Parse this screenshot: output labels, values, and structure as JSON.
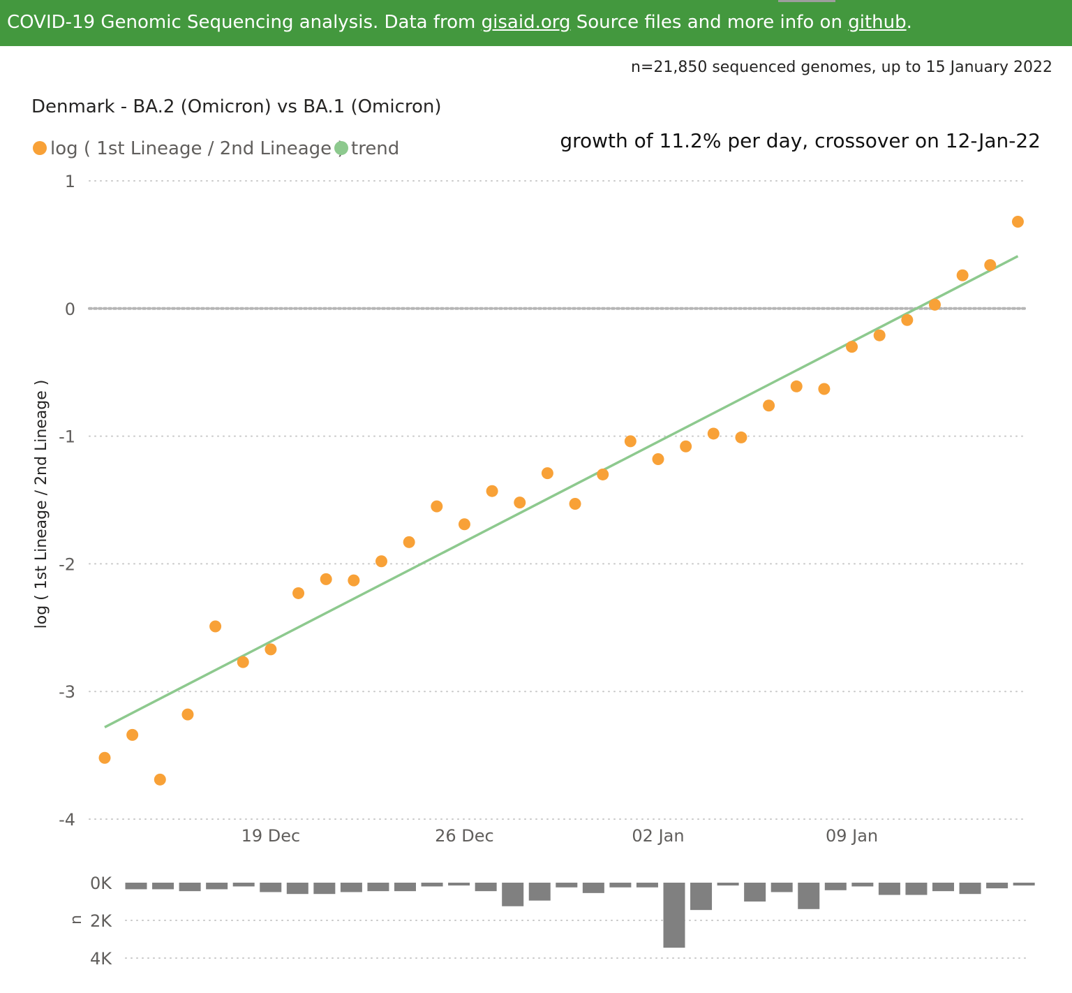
{
  "banner": {
    "text_prefix": "COVID-19 Genomic Sequencing analysis. Data from ",
    "link_gisaid": "gisaid.org",
    "text_middle": " Source files and more info on ",
    "link_github": "github",
    "text_suffix": "."
  },
  "sample_note": "n=21,850 sequenced genomes, up to 15 January 2022",
  "colors": {
    "banner": "#43983e",
    "points": "#f8a137",
    "trend": "#8dc98e",
    "bars": "#808080",
    "grid": "#c8c8c8",
    "zero_line": "#b5b5b5"
  },
  "chart_data": [
    {
      "type": "scatter",
      "title": "Denmark - BA.2 (Omicron) vs BA.1 (Omicron)",
      "annotation": "growth of 11.2% per day, crossover on 12-Jan-22",
      "legend": [
        {
          "name": "log ( 1st Lineage / 2nd Lineage )",
          "color": "#f8a137"
        },
        {
          "name": "trend",
          "color": "#8dc98e"
        }
      ],
      "legend_position": "top-left",
      "ylabel": "log ( 1st Lineage / 2nd Lineage )",
      "ylim": [
        -4,
        1
      ],
      "yticks": [
        "1",
        "0",
        "-1",
        "-2",
        "-3",
        "-4"
      ],
      "yticks_values": [
        1,
        0,
        -1,
        -2,
        -3,
        -4
      ],
      "xlim": [
        "2021-12-12",
        "2022-01-15"
      ],
      "xticks": [
        "19 Dec",
        "26 Dec",
        "02 Jan",
        "09 Jan"
      ],
      "xticks_dates": [
        "2021-12-19",
        "2021-12-26",
        "2022-01-02",
        "2022-01-09"
      ],
      "grid": true,
      "dates": [
        "2021-12-13",
        "2021-12-14",
        "2021-12-15",
        "2021-12-16",
        "2021-12-17",
        "2021-12-18",
        "2021-12-19",
        "2021-12-20",
        "2021-12-21",
        "2021-12-22",
        "2021-12-23",
        "2021-12-24",
        "2021-12-25",
        "2021-12-26",
        "2021-12-27",
        "2021-12-28",
        "2021-12-29",
        "2021-12-30",
        "2021-12-31",
        "2022-01-01",
        "2022-01-02",
        "2022-01-03",
        "2022-01-04",
        "2022-01-05",
        "2022-01-06",
        "2022-01-07",
        "2022-01-08",
        "2022-01-09",
        "2022-01-10",
        "2022-01-11",
        "2022-01-12",
        "2022-01-13",
        "2022-01-14",
        "2022-01-15"
      ],
      "values": [
        -3.52,
        -3.34,
        -3.69,
        -3.18,
        -2.49,
        -2.77,
        -2.67,
        -2.23,
        -2.12,
        -2.13,
        -1.98,
        -1.83,
        -1.55,
        -1.69,
        -1.43,
        -1.52,
        -1.29,
        -1.53,
        -1.3,
        -1.04,
        -1.18,
        -1.08,
        -0.98,
        -1.01,
        -0.76,
        -0.61,
        -0.63,
        -0.3,
        -0.21,
        -0.09,
        0.03,
        0.26,
        0.34,
        0.68
      ],
      "trend": {
        "start_date": "2021-12-13",
        "start_value": -3.28,
        "end_date": "2022-01-15",
        "end_value": 0.41
      }
    },
    {
      "type": "bar",
      "ylabel": "n",
      "yticks": [
        "0K",
        "2K",
        "4K"
      ],
      "yticks_values": [
        0,
        2000,
        4000
      ],
      "ylim": [
        0,
        4000
      ],
      "orientation": "downward",
      "dates": [
        "2021-12-13",
        "2021-12-14",
        "2021-12-15",
        "2021-12-16",
        "2021-12-17",
        "2021-12-18",
        "2021-12-19",
        "2021-12-20",
        "2021-12-21",
        "2021-12-22",
        "2021-12-23",
        "2021-12-24",
        "2021-12-25",
        "2021-12-26",
        "2021-12-27",
        "2021-12-28",
        "2021-12-29",
        "2021-12-30",
        "2021-12-31",
        "2022-01-01",
        "2022-01-02",
        "2022-01-03",
        "2022-01-04",
        "2022-01-05",
        "2022-01-06",
        "2022-01-07",
        "2022-01-08",
        "2022-01-09",
        "2022-01-10",
        "2022-01-11",
        "2022-01-12",
        "2022-01-13",
        "2022-01-14",
        "2022-01-15"
      ],
      "values": [
        350,
        350,
        450,
        350,
        200,
        500,
        600,
        600,
        500,
        450,
        450,
        200,
        150,
        450,
        1250,
        950,
        250,
        550,
        250,
        250,
        3450,
        1450,
        150,
        1000,
        500,
        1400,
        400,
        200,
        650,
        650,
        450,
        600,
        300,
        150
      ]
    }
  ]
}
